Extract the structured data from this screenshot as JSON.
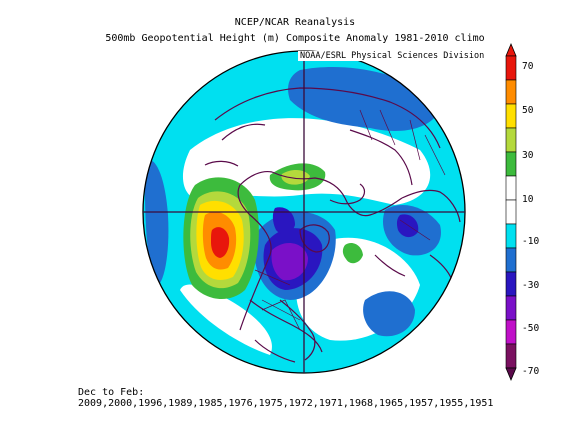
{
  "header": {
    "line1": "NCEP/NCAR Reanalysis",
    "line2": "500mb Geopotential Height (m) Composite Anomaly 1981-2010 climo",
    "credit": "NOAA/ESRL Physical Sciences Division"
  },
  "footer": {
    "composite_dates": "Dec to Feb: 2009,2000,1996,1989,1985,1976,1975,1972,1971,1968,1965,1957,1955,1951"
  },
  "colorbar": {
    "labels": [
      "70",
      "50",
      "30",
      "10",
      "-10",
      "-30",
      "-50",
      "-70"
    ],
    "colors": [
      "#e8160c",
      "#ff8c00",
      "#ffdf00",
      "#b4d93c",
      "#3dbb3d",
      "#ffffff",
      "#00e0f0",
      "#1f6fd0",
      "#2a16c0",
      "#7a10c8",
      "#c010c8",
      "#7a1060"
    ],
    "units": "m"
  },
  "map": {
    "projection": "north-polar-stereographic",
    "background_color": "#ffffff",
    "land_outline_color": "#5a0a4a"
  }
}
